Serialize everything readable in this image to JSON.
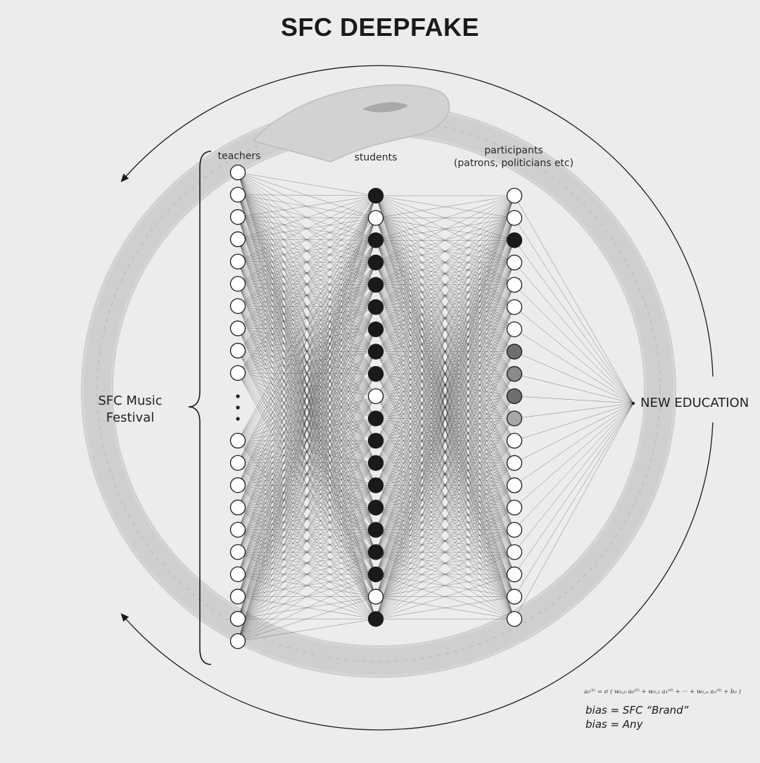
{
  "title": "SFC DEEPFAKE",
  "labels": {
    "teachers": "teachers",
    "students": "students",
    "participants_line1": "participants",
    "participants_line2": "(patrons, politicians etc)",
    "festival_line1": "SFC Music",
    "festival_line2": "Festival",
    "output": "NEW EDUCATION"
  },
  "formula": "a₀⁽¹⁾ = σ ( w₀,₀ a₀⁽⁰⁾ + w₀,₁ a₁⁽⁰⁾ + ··· + w₀,ₙ aₙ⁽⁰⁾ + b₀ )",
  "bias_lines": [
    "bias = SFC “Brand”",
    "bias = Any"
  ],
  "network": {
    "teachers": {
      "top_group": [
        "empty",
        "empty",
        "empty",
        "empty",
        "empty",
        "empty",
        "empty",
        "empty",
        "empty",
        "empty"
      ],
      "ellipsis": true,
      "bottom_group": [
        "empty",
        "empty",
        "empty",
        "empty",
        "empty",
        "empty",
        "empty",
        "empty",
        "empty",
        "empty"
      ]
    },
    "students": [
      "black",
      "empty",
      "black",
      "black",
      "black",
      "black",
      "black",
      "black",
      "black",
      "empty",
      "black",
      "black",
      "black",
      "black",
      "black",
      "black",
      "black",
      "black",
      "empty",
      "black"
    ],
    "participants": [
      "empty",
      "empty",
      "black",
      "empty",
      "empty",
      "empty",
      "empty",
      "gray-dark",
      "gray-mid",
      "gray-dark",
      "gray-light",
      "empty",
      "empty",
      "empty",
      "empty",
      "empty",
      "empty",
      "empty",
      "empty",
      "empty"
    ]
  },
  "colors": {
    "background": "#ececec",
    "black": "#1a1a1a",
    "gray-dark": "#6e6e6e",
    "gray-mid": "#8a8a8a",
    "gray-light": "#a8a8a8",
    "empty": "#ffffff",
    "serpent": "#c9c9c9"
  }
}
